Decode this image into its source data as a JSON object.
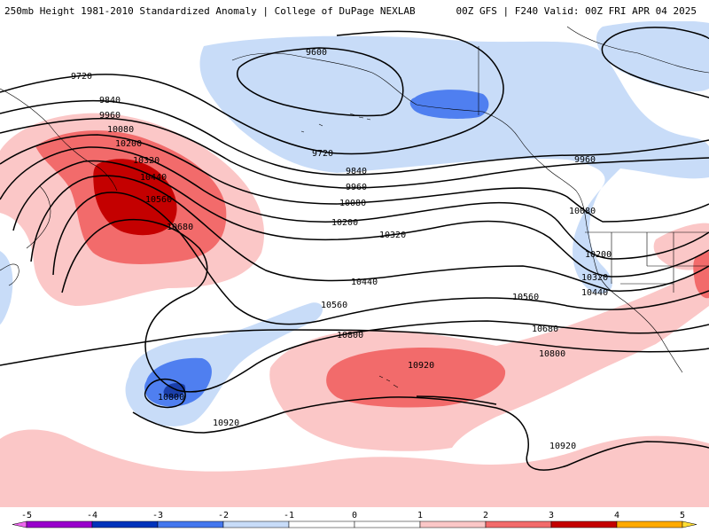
{
  "header": {
    "title_left": "250mb Height 1981-2010 Standardized Anomaly | College of DuPage NEXLAB",
    "title_right": "00Z GFS | F240 Valid: 00Z FRI APR 04 2025"
  },
  "contour_labels": {
    "c9600": "9600",
    "c9720a": "9720",
    "c9720b": "9720",
    "c9840a": "9840",
    "c9840b": "9840",
    "c9960a": "9960",
    "c9960b": "9960",
    "c9960c": "9960",
    "c10080a": "10080",
    "c10080b": "10080",
    "c10080c": "10080",
    "c10200a": "10200",
    "c10200b": "10200",
    "c10200c": "10200",
    "c10320a": "10320",
    "c10320b": "10320",
    "c10320c": "10320",
    "c10440a": "10440",
    "c10440b": "10440",
    "c10440c": "10440",
    "c10560a": "10560",
    "c10560b": "10560",
    "c10560c": "10560",
    "c10680a": "10680",
    "c10680b": "10680",
    "c10800a": "10800",
    "c10800b": "10800",
    "c10800c": "10800",
    "c10920a": "10920",
    "c10920b": "10920",
    "c10920c": "10920"
  },
  "colorbar": {
    "ticks": [
      "-5",
      "-4",
      "-3",
      "-2",
      "-1",
      "0",
      "1",
      "2",
      "3",
      "4",
      "5"
    ],
    "colors": [
      "#ee66ee",
      "#9900cc",
      "#0033bb",
      "#4477ee",
      "#c8dcf8",
      "#ffffff",
      "#ffffff",
      "#fbc7c7",
      "#f26b6b",
      "#c40000",
      "#ffaa00",
      "#ffdd33"
    ]
  },
  "colors": {
    "neg_light": "#c8dcf8",
    "neg_mid": "#4f7ff0",
    "neg_dark": "#1b3faa",
    "pos_light": "#fbc7c7",
    "pos_mid": "#f26b6b",
    "pos_dark": "#c40000"
  }
}
